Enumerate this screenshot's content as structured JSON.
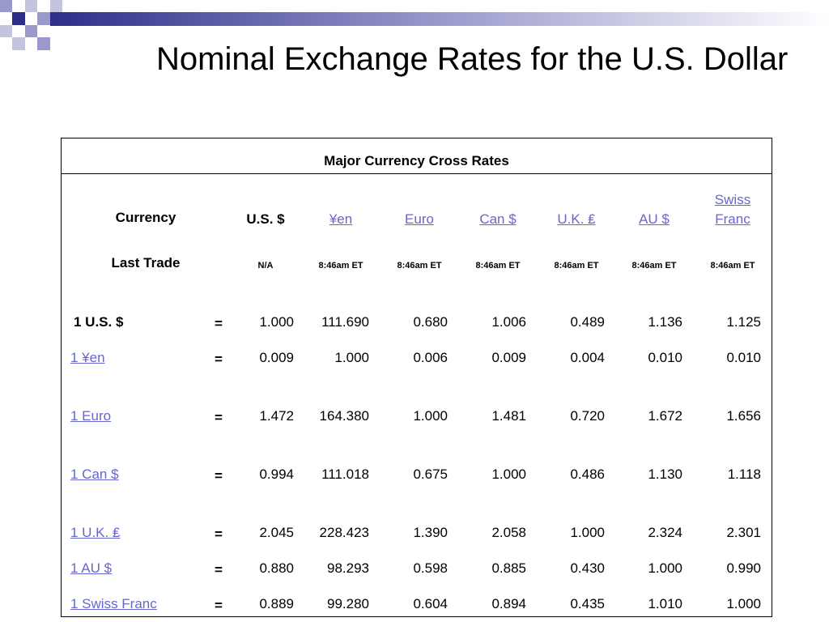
{
  "slide": {
    "title": "Nominal Exchange Rates for the U.S. Dollar"
  },
  "table": {
    "caption": "Major Currency Cross Rates",
    "currency_label": "Currency",
    "last_trade_label": "Last Trade",
    "columns": [
      {
        "label": "U.S. $",
        "linked": false,
        "last_trade": "N/A"
      },
      {
        "label": "¥en",
        "linked": true,
        "last_trade": "8:46am ET"
      },
      {
        "label": "Euro",
        "linked": true,
        "last_trade": "8:46am ET"
      },
      {
        "label": "Can $",
        "linked": true,
        "last_trade": "8:46am ET"
      },
      {
        "label": "U.K. ₤",
        "linked": true,
        "last_trade": "8:46am ET"
      },
      {
        "label": "AU $",
        "linked": true,
        "last_trade": "8:46am ET"
      },
      {
        "label": "Swiss Franc",
        "linked": true,
        "last_trade": "8:46am ET"
      }
    ],
    "equals_sign": "=",
    "rows": [
      {
        "label": "1 U.S. $",
        "linked": false,
        "values": [
          "1.000",
          "111.690",
          "0.680",
          "1.006",
          "0.489",
          "1.136",
          "1.125"
        ]
      },
      {
        "label": "1 ¥en",
        "linked": true,
        "values": [
          "0.009",
          "1.000",
          "0.006",
          "0.009",
          "0.004",
          "0.010",
          "0.010"
        ]
      },
      {
        "label": "1 Euro",
        "linked": true,
        "values": [
          "1.472",
          "164.380",
          "1.000",
          "1.481",
          "0.720",
          "1.672",
          "1.656"
        ]
      },
      {
        "label": "1 Can $",
        "linked": true,
        "values": [
          "0.994",
          "111.018",
          "0.675",
          "1.000",
          "0.486",
          "1.130",
          "1.118"
        ]
      },
      {
        "label": "1 U.K. ₤",
        "linked": true,
        "values": [
          "2.045",
          "228.423",
          "1.390",
          "2.058",
          "1.000",
          "2.324",
          "2.301"
        ]
      },
      {
        "label": "1 AU $",
        "linked": true,
        "values": [
          "0.880",
          "98.293",
          "0.598",
          "0.885",
          "0.430",
          "1.000",
          "0.990"
        ]
      },
      {
        "label": "1 Swiss Franc",
        "linked": true,
        "values": [
          "0.889",
          "99.280",
          "0.604",
          "0.894",
          "0.435",
          "1.010",
          "1.000"
        ]
      }
    ]
  },
  "colors": {
    "link": "#6666cc",
    "decor_dark": "#2e2e8a",
    "decor_light": "#9999cc"
  }
}
